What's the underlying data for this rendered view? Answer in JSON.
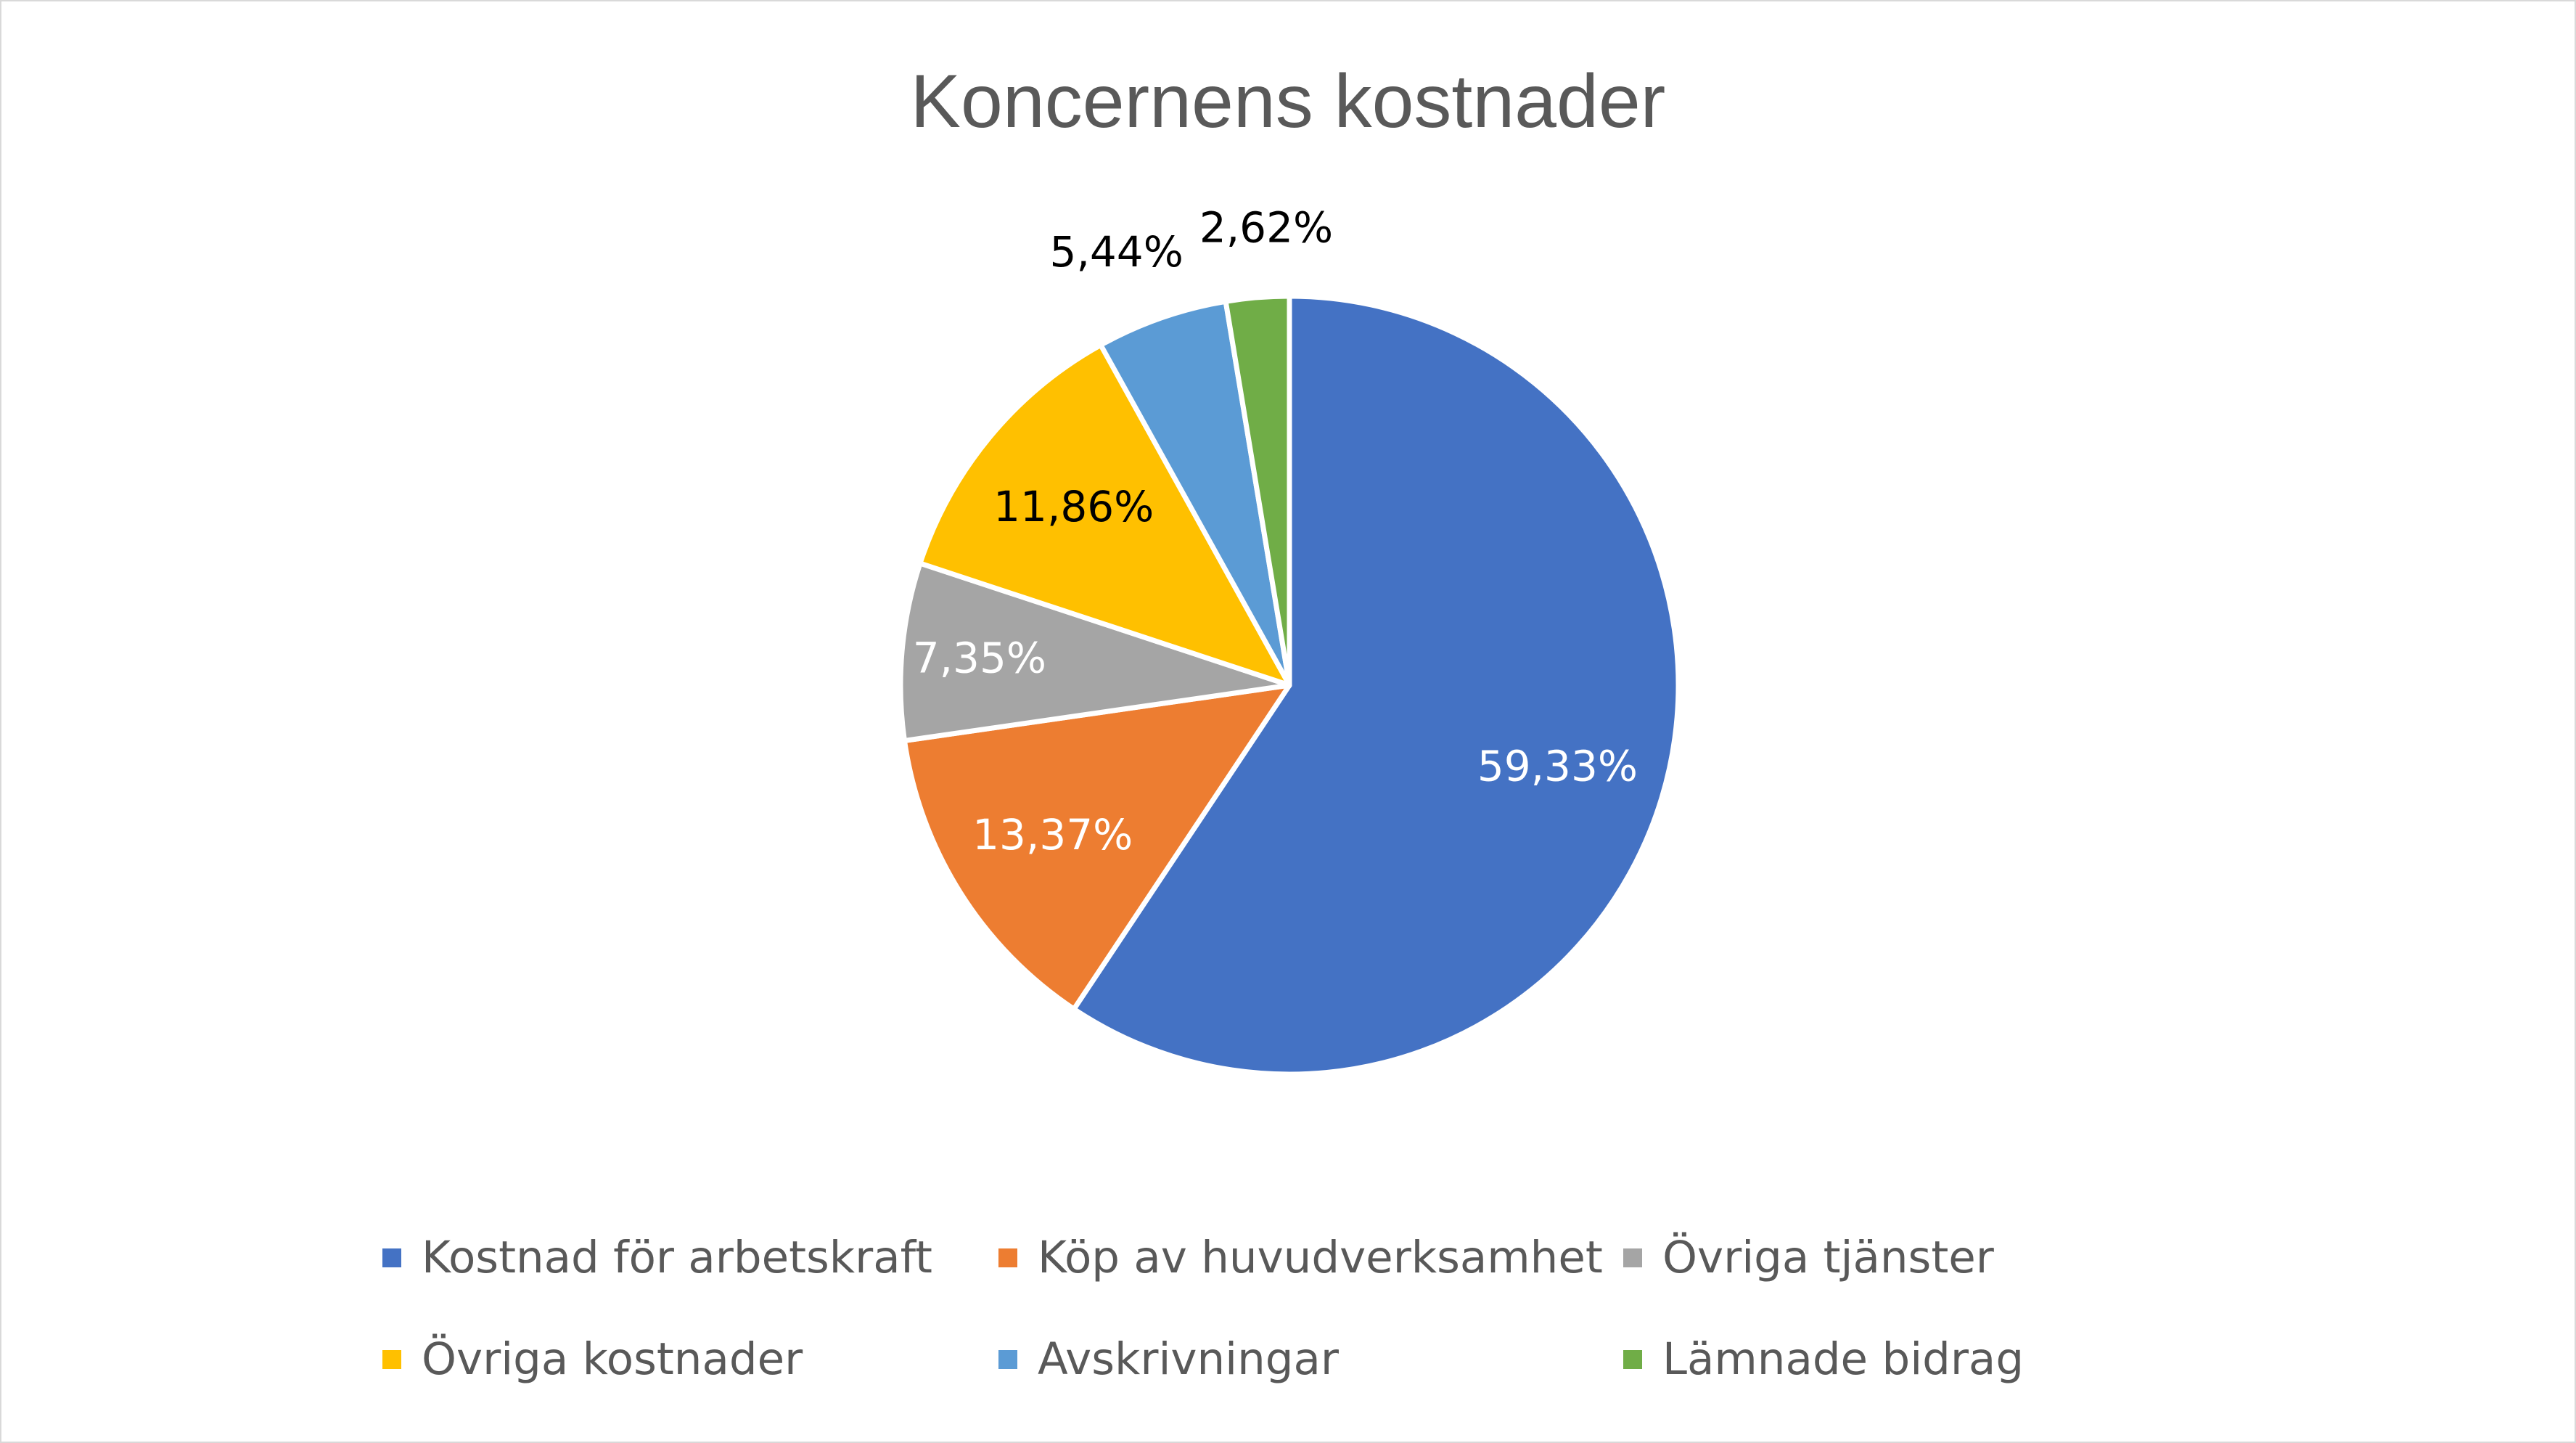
{
  "chart_data": {
    "type": "pie",
    "title": "Koncernens kostnader",
    "categories": [
      "Kostnad för arbetskraft",
      "Köp av huvudverksamhet",
      "Övriga tjänster",
      "Övriga kostnader",
      "Avskrivningar",
      "Lämnade bidrag"
    ],
    "values": [
      59.33,
      13.37,
      7.35,
      11.86,
      5.44,
      2.62
    ],
    "data_labels": [
      "59,33%",
      "13,37%",
      "7,35%",
      "11,86%",
      "5,44%",
      "2,62%"
    ],
    "colors": [
      "#4472c4",
      "#ed7d31",
      "#a5a5a5",
      "#ffc000",
      "#5b9bd5",
      "#70ad47"
    ],
    "label_colors": [
      "#ffffff",
      "#ffffff",
      "#ffffff",
      "#000000",
      "#000000",
      "#000000"
    ],
    "legend_position": "bottom",
    "start_angle_deg": 0,
    "direction": "clockwise"
  }
}
